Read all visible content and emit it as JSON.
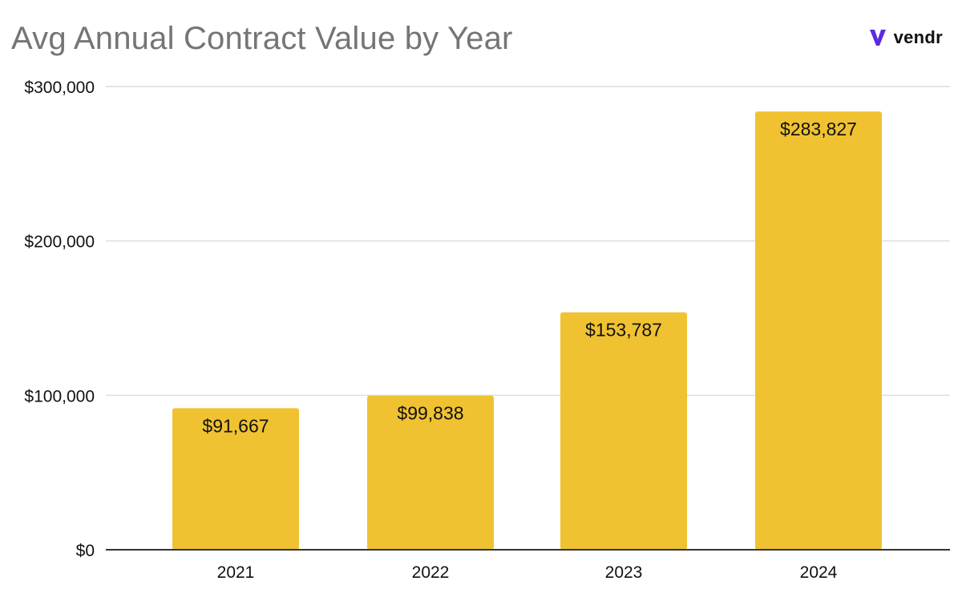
{
  "header": {
    "title": "Avg Annual Contract Value by Year",
    "brand": "vendr"
  },
  "colors": {
    "bar": "#F0C232",
    "grid": "#DDDDDD",
    "axis": "#333333",
    "text": "#111111",
    "title": "#757575",
    "brand_mark": "#5B2BE0"
  },
  "chart_data": {
    "type": "bar",
    "title": "Avg Annual Contract Value by Year",
    "categories": [
      "2021",
      "2022",
      "2023",
      "2024"
    ],
    "values": [
      91667,
      99838,
      153787,
      283827
    ],
    "data_labels": [
      "$91,667",
      "$99,838",
      "$153,787",
      "$283,827"
    ],
    "ylim": [
      0,
      300000
    ],
    "yticks": [
      0,
      100000,
      200000,
      300000
    ],
    "ytick_labels": [
      "$0",
      "$100,000",
      "$200,000",
      "$300,000"
    ],
    "xlabel": "",
    "ylabel": "",
    "grid": true,
    "legend": "none"
  }
}
